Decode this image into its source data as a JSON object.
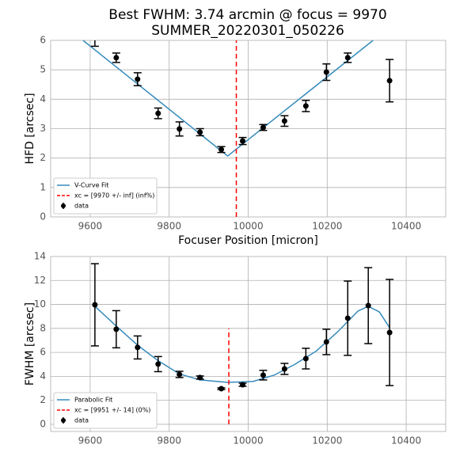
{
  "title": [
    "Best FWHM: 3.74 arcmin @ focus = 9970",
    "SUMMER_20220301_050226"
  ],
  "chart_data": [
    {
      "type": "line",
      "xlabel": "Focuser Position [micron]",
      "ylabel": "HFD [arcsec]",
      "xlim": [
        9500,
        10500
      ],
      "ylim": [
        0,
        6
      ],
      "xticks": [
        9600,
        9800,
        10000,
        10200,
        10400
      ],
      "yticks": [
        0,
        1,
        2,
        3,
        4,
        5,
        6
      ],
      "grid": true,
      "legend": "lower left",
      "series": [
        {
          "name": "V-Curve Fit",
          "kind": "line",
          "linestyle": "solid",
          "color": "#348abd",
          "x": [
            9582,
            9948,
            10316
          ],
          "values": [
            6.0,
            2.07,
            6.0
          ]
        },
        {
          "name": "xc = [9970 +/- inf] (inf%)",
          "kind": "line",
          "linestyle": "dashed",
          "color": "#ff0000",
          "x": [
            9970,
            9970
          ],
          "values": [
            0,
            6
          ]
        },
        {
          "name": "data",
          "kind": "errorbar",
          "color": "#000000",
          "x": [
            9612,
            9666,
            9720,
            9772,
            9826,
            9878,
            9932,
            9986,
            10038,
            10092,
            10146,
            10198,
            10252,
            10358
          ],
          "values": [
            6.1,
            5.41,
            4.68,
            3.52,
            2.99,
            2.88,
            2.29,
            2.58,
            3.04,
            3.26,
            3.77,
            4.92,
            5.41,
            4.63
          ],
          "errors": [
            0.3,
            0.16,
            0.22,
            0.18,
            0.24,
            0.12,
            0.1,
            0.12,
            0.1,
            0.18,
            0.19,
            0.28,
            0.16,
            0.72
          ]
        }
      ]
    },
    {
      "type": "line",
      "ylabel": "FWHM [arcsec]",
      "xlim": [
        9500,
        10500
      ],
      "ylim": [
        -0.6,
        14
      ],
      "xticks": [
        9600,
        9800,
        10000,
        10200,
        10400
      ],
      "yticks": [
        0,
        2,
        4,
        6,
        8,
        10,
        12,
        14
      ],
      "grid": true,
      "legend": "lower left",
      "series": [
        {
          "name": "Parabolic Fit",
          "kind": "line",
          "linestyle": "solid",
          "color": "#348abd",
          "x": [
            9612,
            9666,
            9720,
            9772,
            9826,
            9878,
            9948,
            10012,
            10066,
            10118,
            10172,
            10226,
            10278,
            10304,
            10332,
            10358
          ],
          "values": [
            9.84,
            8.2,
            6.6,
            5.3,
            4.2,
            3.7,
            3.5,
            3.57,
            4.1,
            5.0,
            6.1,
            7.7,
            9.45,
            9.84,
            9.38,
            8.06
          ]
        },
        {
          "name": "xc = [9951 +/- 14] (0%)",
          "kind": "line",
          "linestyle": "dashed",
          "color": "#ff0000",
          "x": [
            9951,
            9951
          ],
          "values": [
            0,
            8
          ]
        },
        {
          "name": "data",
          "kind": "errorbar",
          "color": "#000000",
          "x": [
            9612,
            9666,
            9720,
            9772,
            9826,
            9878,
            9932,
            9986,
            10038,
            10092,
            10146,
            10198,
            10252,
            10304,
            10358
          ],
          "values": [
            9.97,
            7.93,
            6.41,
            5.02,
            4.16,
            3.9,
            2.97,
            3.3,
            4.1,
            4.62,
            5.48,
            6.87,
            8.85,
            9.9,
            7.66
          ],
          "errors": [
            3.43,
            1.55,
            0.96,
            0.63,
            0.26,
            0.13,
            0.07,
            0.13,
            0.4,
            0.46,
            0.86,
            1.06,
            3.1,
            3.17,
            4.43
          ]
        }
      ]
    }
  ]
}
